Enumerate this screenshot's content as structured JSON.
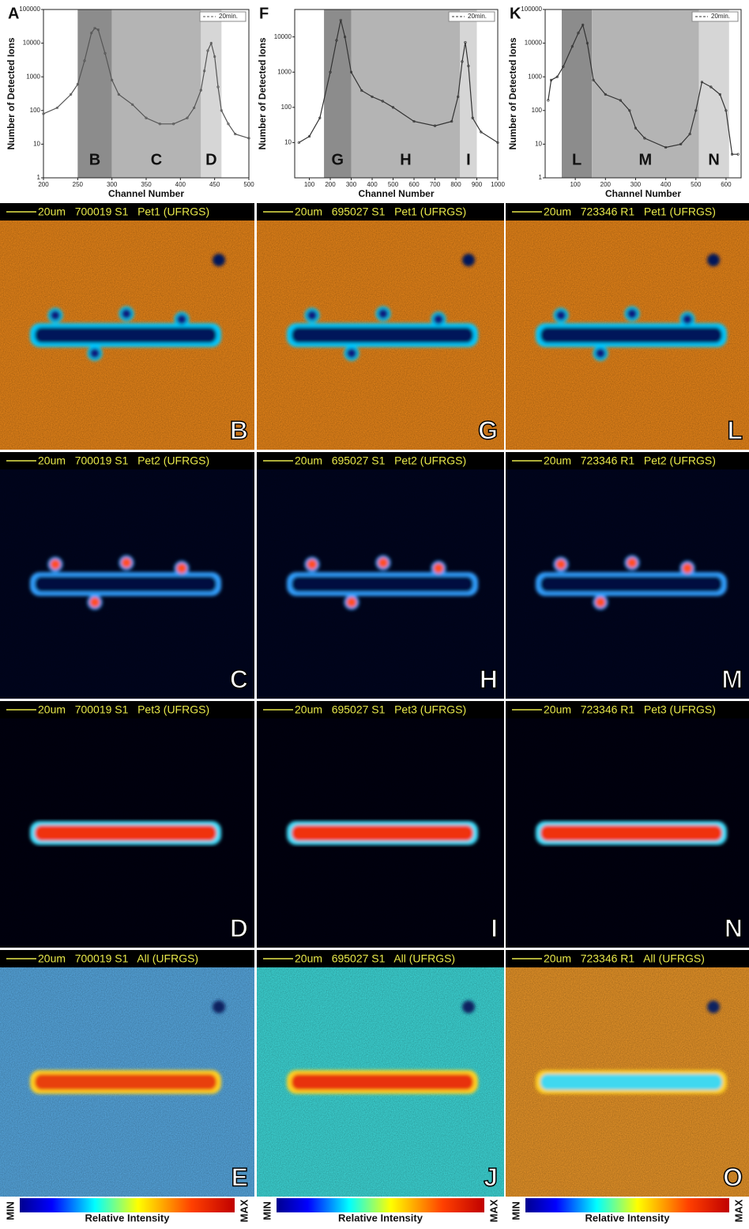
{
  "chart_data": [
    {
      "type": "line",
      "panel_label": "A",
      "xlabel": "Channel Number",
      "ylabel": "Number of Detected Ions",
      "log_y": true,
      "xlim": [
        200,
        500
      ],
      "xticks": [
        200,
        250,
        300,
        350,
        400,
        450,
        500
      ],
      "ylim": [
        1,
        100000
      ],
      "yticks": [
        1,
        10,
        100,
        1000,
        10000,
        100000
      ],
      "x": [
        200,
        220,
        240,
        250,
        260,
        270,
        275,
        280,
        290,
        300,
        310,
        330,
        350,
        370,
        390,
        410,
        420,
        430,
        435,
        440,
        445,
        450,
        455,
        460,
        470,
        480,
        500
      ],
      "series": [
        {
          "name": "20min.",
          "color": "#555555",
          "values": [
            80,
            120,
            300,
            600,
            3000,
            20000,
            28000,
            25000,
            5000,
            800,
            300,
            150,
            60,
            40,
            40,
            60,
            120,
            400,
            1500,
            6000,
            10000,
            4000,
            500,
            100,
            40,
            20,
            15
          ]
        }
      ],
      "regions": [
        {
          "label": "B",
          "start": 250,
          "end": 300,
          "color": "#8c8c8c"
        },
        {
          "label": "C",
          "start": 300,
          "end": 430,
          "color": "#b4b4b4"
        },
        {
          "label": "D",
          "start": 430,
          "end": 460,
          "color": "#d6d6d6"
        }
      ]
    },
    {
      "type": "line",
      "panel_label": "F",
      "xlabel": "Channel Number",
      "ylabel": "Number of Detected Ions",
      "log_y": true,
      "xlim": [
        30,
        1000
      ],
      "xticks": [
        100,
        200,
        300,
        400,
        500,
        600,
        700,
        800,
        900,
        1000
      ],
      "ylim": [
        1,
        60000
      ],
      "yticks": [
        10,
        100,
        1000,
        10000
      ],
      "x": [
        50,
        100,
        150,
        200,
        230,
        250,
        270,
        300,
        350,
        400,
        450,
        500,
        600,
        700,
        780,
        810,
        830,
        845,
        860,
        880,
        920,
        1000
      ],
      "series": [
        {
          "name": "20min.",
          "color": "#333333",
          "values": [
            10,
            15,
            50,
            1000,
            8000,
            30000,
            10000,
            1000,
            300,
            200,
            150,
            100,
            40,
            30,
            40,
            200,
            2000,
            7000,
            1500,
            50,
            20,
            10
          ]
        }
      ],
      "regions": [
        {
          "label": "G",
          "start": 170,
          "end": 300,
          "color": "#8c8c8c"
        },
        {
          "label": "H",
          "start": 300,
          "end": 820,
          "color": "#b4b4b4"
        },
        {
          "label": "I",
          "start": 820,
          "end": 900,
          "color": "#d6d6d6"
        }
      ]
    },
    {
      "type": "line",
      "panel_label": "K",
      "xlabel": "Channel Number",
      "ylabel": "Number of Detected Ions",
      "log_y": true,
      "xlim": [
        0,
        650
      ],
      "xticks": [
        100,
        200,
        300,
        400,
        500,
        600
      ],
      "ylim": [
        1,
        100000
      ],
      "yticks": [
        1,
        10,
        100,
        1000,
        10000,
        100000
      ],
      "x": [
        10,
        20,
        40,
        60,
        90,
        110,
        125,
        140,
        160,
        200,
        250,
        280,
        300,
        330,
        400,
        450,
        480,
        500,
        520,
        550,
        580,
        600,
        620,
        640
      ],
      "series": [
        {
          "name": "20min.",
          "color": "#333333",
          "values": [
            200,
            800,
            1000,
            2000,
            8000,
            20000,
            35000,
            10000,
            800,
            300,
            200,
            100,
            30,
            15,
            8,
            10,
            20,
            100,
            700,
            500,
            300,
            100,
            5,
            5
          ]
        }
      ],
      "regions": [
        {
          "label": "L",
          "start": 55,
          "end": 155,
          "color": "#8c8c8c"
        },
        {
          "label": "M",
          "start": 155,
          "end": 510,
          "color": "#b4b4b4"
        },
        {
          "label": "N",
          "start": 510,
          "end": 610,
          "color": "#d6d6d6"
        }
      ]
    }
  ],
  "panels": {
    "columns": [
      [
        {
          "caption": "20um   700019 S1   Pet1 (UFRGS)",
          "letter": "B"
        },
        {
          "caption": "20um   700019 S1   Pet2 (UFRGS)",
          "letter": "C"
        },
        {
          "caption": "20um   700019 S1   Pet3 (UFRGS)",
          "letter": "D"
        },
        {
          "caption": "20um   700019 S1   All (UFRGS)",
          "letter": "E"
        }
      ],
      [
        {
          "caption": "20um   695027 S1   Pet1 (UFRGS)",
          "letter": "G"
        },
        {
          "caption": "20um   695027 S1   Pet2 (UFRGS)",
          "letter": "H"
        },
        {
          "caption": "20um   695027 S1   Pet3 (UFRGS)",
          "letter": "I"
        },
        {
          "caption": "20um   695027 S1   All (UFRGS)",
          "letter": "J"
        }
      ],
      [
        {
          "caption": "20um   723346 R1   Pet1 (UFRGS)",
          "letter": "L"
        },
        {
          "caption": "20um   723346 R1   Pet2 (UFRGS)",
          "letter": "M"
        },
        {
          "caption": "20um   723346 R1   Pet3 (UFRGS)",
          "letter": "N"
        },
        {
          "caption": "20um   723346 R1   All (UFRGS)",
          "letter": "O"
        }
      ]
    ]
  },
  "colorbars": [
    {
      "min": "MIN",
      "max": "MAX",
      "label": "Relative Intensity"
    },
    {
      "min": "MIN",
      "max": "MAX",
      "label": "Relative Intensity"
    },
    {
      "min": "MIN",
      "max": "MAX",
      "label": "Relative Intensity"
    }
  ]
}
